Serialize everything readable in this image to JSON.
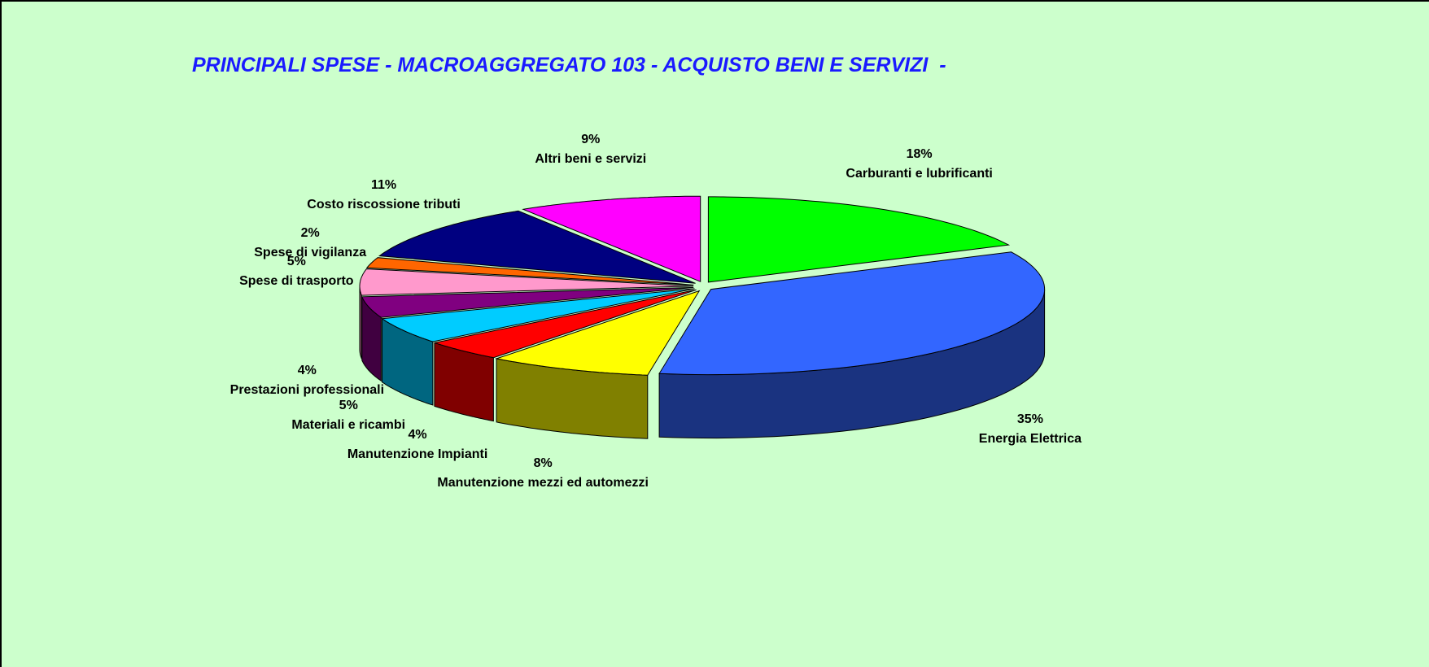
{
  "chart_data": {
    "type": "pie3d",
    "title": "PRINCIPALI SPESE - MACROAGGREGATO 103 - ACQUISTO BENI E SERVIZI  -",
    "categories": [
      "Carburanti e lubrificanti",
      "Energia Elettrica",
      "Manutenzione mezzi ed automezzi",
      "Manutenzione Impianti",
      "Materiali e ricambi",
      "Prestazioni professionali",
      "Spese di trasporto",
      "Spese di vigilanza",
      "Costo riscossione tributi",
      "Altri beni e servizi"
    ],
    "values": [
      18,
      35,
      8,
      4,
      5,
      4,
      5,
      2,
      11,
      9
    ],
    "value_labels": [
      "18%",
      "35%",
      "8%",
      "4%",
      "5%",
      "4%",
      "5%",
      "2%",
      "11%",
      "9%"
    ],
    "colors": [
      "#00ff00",
      "#3366ff",
      "#ffff00",
      "#ff0000",
      "#00ccff",
      "#800080",
      "#ff99cc",
      "#ff6600",
      "#000080",
      "#ff00ff"
    ]
  }
}
